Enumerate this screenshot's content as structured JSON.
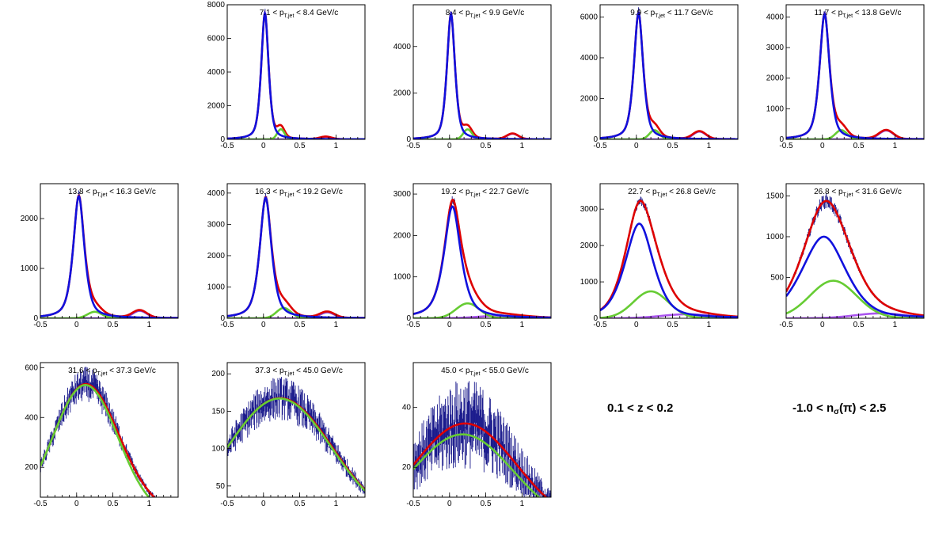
{
  "chart_data": [
    {
      "type": "line",
      "title": {
        "pre": "7.1 < p",
        "sub": "T,jet",
        "post": " < 8.4 GeV/c"
      },
      "xlim": [
        -0.5,
        1.4
      ],
      "ylim": [
        0,
        8000
      ],
      "xticks": [
        -0.5,
        0,
        0.5,
        1
      ],
      "yticks": [
        0,
        2000,
        4000,
        6000,
        8000
      ],
      "components": {
        "blue": {
          "A": 7500,
          "mu": 0.02,
          "sigma": 0.055,
          "tail": 0.55
        },
        "green": {
          "A": 600,
          "mu": 0.24,
          "sigma": 0.05
        },
        "purple": {
          "A": 150,
          "mu": 0.86,
          "sigma": 0.08
        },
        "violet": {
          "A": 0,
          "mu": 0.5,
          "sigma": 0.1
        }
      },
      "noise": 0.02
    },
    {
      "type": "line",
      "title": {
        "pre": "8.4 < p",
        "sub": "T,jet",
        "post": " < 9.9 GeV/c"
      },
      "xlim": [
        -0.5,
        1.4
      ],
      "ylim": [
        0,
        5800
      ],
      "xticks": [
        -0.5,
        0,
        0.5,
        1
      ],
      "yticks": [
        0,
        2000,
        4000
      ],
      "components": {
        "blue": {
          "A": 5400,
          "mu": 0.02,
          "sigma": 0.06,
          "tail": 0.55
        },
        "green": {
          "A": 430,
          "mu": 0.25,
          "sigma": 0.06
        },
        "purple": {
          "A": 240,
          "mu": 0.87,
          "sigma": 0.08
        },
        "violet": {
          "A": 0,
          "mu": 0.5,
          "sigma": 0.1
        }
      },
      "noise": 0.02
    },
    {
      "type": "line",
      "title": {
        "pre": "9.9 < p",
        "sub": "T,jet",
        "post": " < 11.7 GeV/c"
      },
      "xlim": [
        -0.5,
        1.4
      ],
      "ylim": [
        0,
        6600
      ],
      "xticks": [
        -0.5,
        0,
        0.5,
        1
      ],
      "yticks": [
        0,
        2000,
        4000,
        6000
      ],
      "components": {
        "blue": {
          "A": 6200,
          "mu": 0.03,
          "sigma": 0.07,
          "tail": 0.6
        },
        "green": {
          "A": 450,
          "mu": 0.25,
          "sigma": 0.07
        },
        "purple": {
          "A": 380,
          "mu": 0.87,
          "sigma": 0.09
        },
        "violet": {
          "A": 0,
          "mu": 0.5,
          "sigma": 0.1
        }
      },
      "noise": 0.02
    },
    {
      "type": "line",
      "title": {
        "pre": "11.7 < p",
        "sub": "T,jet",
        "post": " < 13.8 GeV/c"
      },
      "xlim": [
        -0.5,
        1.4
      ],
      "ylim": [
        0,
        4400
      ],
      "xticks": [
        -0.5,
        0,
        0.5,
        1
      ],
      "yticks": [
        0,
        1000,
        2000,
        3000,
        4000
      ],
      "components": {
        "blue": {
          "A": 4100,
          "mu": 0.03,
          "sigma": 0.075,
          "tail": 0.6
        },
        "green": {
          "A": 300,
          "mu": 0.26,
          "sigma": 0.08
        },
        "purple": {
          "A": 290,
          "mu": 0.88,
          "sigma": 0.1
        },
        "violet": {
          "A": 0,
          "mu": 0.5,
          "sigma": 0.1
        }
      },
      "noise": 0.02
    },
    {
      "type": "line",
      "title": {
        "pre": "13.8 < p",
        "sub": "T,jet",
        "post": " < 16.3 GeV/c"
      },
      "xlim": [
        -0.5,
        1.4
      ],
      "ylim": [
        0,
        2700
      ],
      "xticks": [
        -0.5,
        0,
        0.5,
        1
      ],
      "yticks": [
        0,
        1000,
        2000
      ],
      "components": {
        "blue": {
          "A": 2450,
          "mu": 0.03,
          "sigma": 0.085,
          "tail": 0.65
        },
        "green": {
          "A": 130,
          "mu": 0.25,
          "sigma": 0.1
        },
        "purple": {
          "A": 150,
          "mu": 0.87,
          "sigma": 0.1
        },
        "violet": {
          "A": 0,
          "mu": 0.5,
          "sigma": 0.1
        }
      },
      "noise": 0.02
    },
    {
      "type": "line",
      "title": {
        "pre": "16.3 < p",
        "sub": "T,jet",
        "post": " < 19.2 GeV/c"
      },
      "xlim": [
        -0.5,
        1.4
      ],
      "ylim": [
        0,
        4300
      ],
      "xticks": [
        -0.5,
        0,
        0.5,
        1
      ],
      "yticks": [
        0,
        1000,
        2000,
        3000,
        4000
      ],
      "components": {
        "blue": {
          "A": 3850,
          "mu": 0.03,
          "sigma": 0.09,
          "tail": 0.65
        },
        "green": {
          "A": 330,
          "mu": 0.28,
          "sigma": 0.1
        },
        "purple": {
          "A": 190,
          "mu": 0.88,
          "sigma": 0.1
        },
        "violet": {
          "A": 0,
          "mu": 0.5,
          "sigma": 0.1
        }
      },
      "noise": 0.02
    },
    {
      "type": "line",
      "title": {
        "pre": "19.2 < p",
        "sub": "T,jet",
        "post": " < 22.7 GeV/c"
      },
      "xlim": [
        -0.5,
        1.4
      ],
      "ylim": [
        0,
        3250
      ],
      "xticks": [
        -0.5,
        0,
        0.5,
        1
      ],
      "yticks": [
        0,
        1000,
        2000,
        3000
      ],
      "components": {
        "blue": {
          "A": 2700,
          "mu": 0.04,
          "sigma": 0.13,
          "tail": 0.7
        },
        "green": {
          "A": 360,
          "mu": 0.25,
          "sigma": 0.16
        },
        "purple": {
          "A": 0,
          "mu": 0.88,
          "sigma": 0.1
        },
        "violet": {
          "A": 60,
          "mu": 0.7,
          "sigma": 0.3
        }
      },
      "noise": 0.02
    },
    {
      "type": "line",
      "title": {
        "pre": "22.7 < p",
        "sub": "T,jet",
        "post": " < 26.8 GeV/c"
      },
      "xlim": [
        -0.5,
        1.4
      ],
      "ylim": [
        0,
        3700
      ],
      "xticks": [
        -0.5,
        0,
        0.5,
        1
      ],
      "yticks": [
        0,
        1000,
        2000,
        3000
      ],
      "components": {
        "blue": {
          "A": 2600,
          "mu": 0.04,
          "sigma": 0.21,
          "tail": 0.5
        },
        "green": {
          "A": 740,
          "mu": 0.2,
          "sigma": 0.24
        },
        "purple": {
          "A": 0,
          "mu": 0.88,
          "sigma": 0.1
        },
        "violet": {
          "A": 110,
          "mu": 0.7,
          "sigma": 0.35
        }
      },
      "noise": 0.02
    },
    {
      "type": "line",
      "title": {
        "pre": "26.8 < p",
        "sub": "T,jet",
        "post": " < 31.6 GeV/c"
      },
      "xlim": [
        -0.5,
        1.4
      ],
      "ylim": [
        0,
        1650
      ],
      "xticks": [
        -0.5,
        0,
        0.5,
        1
      ],
      "yticks": [
        500,
        1000,
        1500
      ],
      "components": {
        "blue": {
          "A": 1000,
          "mu": 0.02,
          "sigma": 0.32,
          "tail": 0.4
        },
        "green": {
          "A": 460,
          "mu": 0.15,
          "sigma": 0.32
        },
        "purple": {
          "A": 0,
          "mu": 0.88,
          "sigma": 0.1
        },
        "violet": {
          "A": 60,
          "mu": 0.8,
          "sigma": 0.35
        }
      },
      "noise": 0.03
    },
    {
      "type": "line",
      "title": {
        "pre": "31.6 < p",
        "sub": "T,jet",
        "post": " < 37.3 GeV/c"
      },
      "xlim": [
        -0.5,
        1.4
      ],
      "ylim": [
        80,
        620
      ],
      "xticks": [
        -0.5,
        0,
        0.5,
        1
      ],
      "yticks": [
        200,
        400,
        600
      ],
      "components": {
        "blue": {
          "A": 0,
          "mu": 0,
          "sigma": 0.3,
          "tail": 0
        },
        "green": {
          "A": 530,
          "mu": 0.12,
          "sigma": 0.45
        },
        "purple": {
          "A": 0,
          "mu": 0.88,
          "sigma": 0.1
        },
        "violet": {
          "A": 0,
          "mu": 0.5,
          "sigma": 0.1
        }
      },
      "redExtra": {
        "A": 25,
        "mu": 0.9,
        "sigma": 0.4
      },
      "noise": 0.06
    },
    {
      "type": "line",
      "title": {
        "pre": "37.3 < p",
        "sub": "T,jet",
        "post": " < 45.0 GeV/c"
      },
      "xlim": [
        -0.5,
        1.4
      ],
      "ylim": [
        35,
        215
      ],
      "xticks": [
        -0.5,
        0,
        0.5,
        1
      ],
      "yticks": [
        50,
        100,
        150,
        200
      ],
      "components": {
        "blue": {
          "A": 0,
          "mu": 0,
          "sigma": 0.3,
          "tail": 0
        },
        "green": {
          "A": 167,
          "mu": 0.22,
          "sigma": 0.72
        },
        "purple": {
          "A": 0,
          "mu": 0.88,
          "sigma": 0.1
        },
        "violet": {
          "A": 0,
          "mu": 0.5,
          "sigma": 0.1
        }
      },
      "redExtra": {
        "A": 2,
        "mu": 0.9,
        "sigma": 0.4
      },
      "noise": 0.08
    },
    {
      "type": "line",
      "title": {
        "pre": "45.0 < p",
        "sub": "T,jet",
        "post": " < 55.0 GeV/c"
      },
      "xlim": [
        -0.5,
        1.4
      ],
      "ylim": [
        10,
        55
      ],
      "xticks": [
        -0.5,
        0,
        0.5,
        1
      ],
      "yticks": [
        20,
        40
      ],
      "components": {
        "blue": {
          "A": 0,
          "mu": 0,
          "sigma": 0.3,
          "tail": 0
        },
        "green": {
          "A": 31,
          "mu": 0.18,
          "sigma": 0.7
        },
        "purple": {
          "A": 0,
          "mu": 0.88,
          "sigma": 0.1
        },
        "violet": {
          "A": 0,
          "mu": 0.5,
          "sigma": 0.1
        }
      },
      "redExtra": {
        "A": 4,
        "mu": 0.5,
        "sigma": 0.7
      },
      "noise": 0.2
    }
  ],
  "annotations": {
    "z_range": "0.1 < z < 0.2",
    "nsigma_pre": "-1.0 < n",
    "nsigma_sub": "σ",
    "nsigma_post": "(π) < 2.5"
  },
  "colors": {
    "data": "#1a1a8c",
    "total_fit": "#dd0000",
    "pion": "#1111dd",
    "kaon": "#66cc33",
    "proton": "#8844dd",
    "electron": "#aa55ee"
  }
}
